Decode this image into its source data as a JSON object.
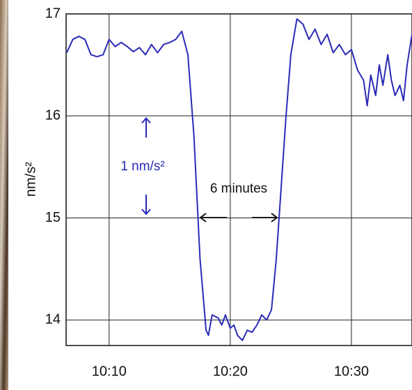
{
  "chart_data": {
    "type": "line",
    "ylabel": "nm/s²",
    "annotations": [
      "1 nm/s²",
      "6 minutes"
    ],
    "xlim": [
      6.45,
      35
    ],
    "xticks": [
      {
        "value": 10,
        "label": "10:10"
      },
      {
        "value": 20,
        "label": "10:20"
      },
      {
        "value": 30,
        "label": "10:30"
      }
    ],
    "ylim": [
      13.75,
      17
    ],
    "yticks": [
      14,
      15,
      16,
      17
    ],
    "grid": true,
    "series": [
      {
        "color": "#2a2ab8",
        "x": [
          6.5,
          7,
          7.5,
          8,
          8.5,
          9,
          9.5,
          10,
          10.5,
          11,
          11.5,
          12,
          12.5,
          13,
          13.5,
          14,
          14.5,
          15,
          15.5,
          16,
          16.5,
          17,
          17.5,
          18,
          18.2,
          18.5,
          19,
          19.3,
          19.6,
          20,
          20.3,
          20.6,
          21,
          21.4,
          21.8,
          22.2,
          22.6,
          23,
          23.4,
          23.8,
          24.2,
          24.6,
          25,
          25.5,
          26,
          26.5,
          27,
          27.5,
          28,
          28.5,
          29,
          29.5,
          30,
          30.5,
          31,
          31.3,
          31.6,
          32,
          32.3,
          32.6,
          33,
          33.3,
          33.6,
          34,
          34.3,
          34.6,
          35
        ],
        "values": [
          16.62,
          16.75,
          16.78,
          16.75,
          16.6,
          16.58,
          16.6,
          16.75,
          16.68,
          16.72,
          16.68,
          16.63,
          16.67,
          16.6,
          16.7,
          16.62,
          16.7,
          16.72,
          16.75,
          16.83,
          16.6,
          15.8,
          14.6,
          13.9,
          13.85,
          14.05,
          14.02,
          13.95,
          14.05,
          13.92,
          13.95,
          13.85,
          13.8,
          13.9,
          13.88,
          13.95,
          14.05,
          14.0,
          14.1,
          14.6,
          15.3,
          16.0,
          16.6,
          16.95,
          16.9,
          16.75,
          16.85,
          16.7,
          16.8,
          16.62,
          16.7,
          16.6,
          16.65,
          16.45,
          16.35,
          16.1,
          16.4,
          16.2,
          16.5,
          16.3,
          16.6,
          16.35,
          16.2,
          16.3,
          16.15,
          16.5,
          16.8
        ]
      }
    ]
  }
}
